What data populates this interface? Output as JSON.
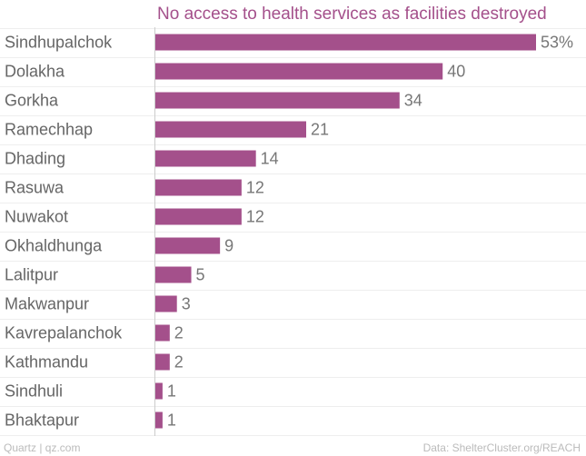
{
  "chart_data": {
    "type": "bar",
    "orientation": "horizontal",
    "title": "No access to health services as facilities destroyed",
    "categories": [
      "Sindhupalchok",
      "Dolakha",
      "Gorkha",
      "Ramechhap",
      "Dhading",
      "Rasuwa",
      "Nuwakot",
      "Okhaldhunga",
      "Lalitpur",
      "Makwanpur",
      "Kavrepalanchok",
      "Kathmandu",
      "Sindhuli",
      "Bhaktapur"
    ],
    "values": [
      53,
      40,
      34,
      21,
      14,
      12,
      12,
      9,
      5,
      3,
      2,
      2,
      1,
      1
    ],
    "value_labels": [
      "53%",
      "40",
      "34",
      "21",
      "14",
      "12",
      "12",
      "9",
      "5",
      "3",
      "2",
      "2",
      "1",
      "1"
    ],
    "xlim": [
      0,
      53
    ],
    "bar_color": "#a4508b",
    "grid": true
  },
  "footer": {
    "left": "Quartz | qz.com",
    "right": "Data: ShelterCluster.org/REACH"
  }
}
